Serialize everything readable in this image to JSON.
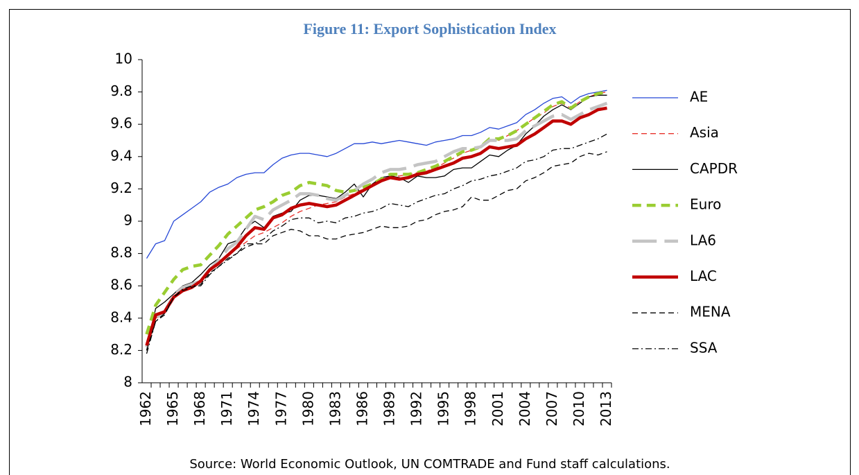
{
  "chart_data": {
    "type": "line",
    "title": "Figure 11: Export Sophistication Index",
    "source": "Source: World Economic Outlook, UN COMTRADE and Fund staff calculations.",
    "categories": [
      "1962",
      null,
      null,
      "1965",
      null,
      null,
      "1968",
      null,
      null,
      "1971",
      null,
      null,
      "1974",
      null,
      null,
      "1977",
      null,
      null,
      "1980",
      null,
      null,
      "1983",
      null,
      null,
      "1986",
      null,
      null,
      "1989",
      null,
      null,
      "1992",
      null,
      null,
      "1995",
      null,
      null,
      "1998",
      null,
      null,
      "2001",
      null,
      null,
      "2004",
      null,
      null,
      "2007",
      null,
      null,
      "2010",
      null,
      null,
      "2013"
    ],
    "ylim": [
      8,
      10
    ],
    "yticks": [
      8,
      8.2,
      8.4,
      8.6,
      8.8,
      9,
      9.2,
      9.4,
      9.6,
      9.8,
      10
    ],
    "grid": false,
    "legend": "right",
    "series": [
      {
        "name": "AE",
        "color": "#2547d6",
        "line_style": "solid",
        "weight": "thin",
        "values": [
          8.77,
          8.86,
          8.88,
          9.0,
          9.04,
          9.08,
          9.12,
          9.18,
          9.21,
          9.23,
          9.27,
          9.29,
          9.3,
          9.3,
          9.35,
          9.39,
          9.41,
          9.42,
          9.42,
          9.41,
          9.4,
          9.42,
          9.45,
          9.48,
          9.48,
          9.49,
          9.48,
          9.49,
          9.5,
          9.49,
          9.48,
          9.47,
          9.49,
          9.5,
          9.51,
          9.53,
          9.53,
          9.55,
          9.58,
          9.57,
          9.59,
          9.61,
          9.66,
          9.69,
          9.73,
          9.76,
          9.77,
          9.73,
          9.77,
          9.79,
          9.8,
          9.81
        ]
      },
      {
        "name": "Asia",
        "color": "#e8322c",
        "line_style": "dashed",
        "weight": "thin",
        "values": [
          8.24,
          8.4,
          8.43,
          8.53,
          8.57,
          8.59,
          8.63,
          8.69,
          8.73,
          8.79,
          8.83,
          8.87,
          8.91,
          8.93,
          8.96,
          8.99,
          9.03,
          9.06,
          9.08,
          9.1,
          9.11,
          9.12,
          9.15,
          9.17,
          9.2,
          9.23,
          9.25,
          9.28,
          9.28,
          9.29,
          9.3,
          9.31,
          9.33,
          9.36,
          9.39,
          9.42,
          9.44,
          9.46,
          9.5,
          9.5,
          9.53,
          9.56,
          9.6,
          9.64,
          9.67,
          9.71,
          9.73,
          9.7,
          9.74,
          9.77,
          9.79,
          9.8
        ]
      },
      {
        "name": "CAPDR",
        "color": "#000000",
        "line_style": "solid",
        "weight": "thin",
        "values": [
          8.2,
          8.46,
          8.5,
          8.55,
          8.6,
          8.62,
          8.67,
          8.73,
          8.77,
          8.86,
          8.88,
          8.96,
          9.0,
          8.96,
          9.03,
          9.05,
          9.06,
          9.13,
          9.16,
          9.16,
          9.15,
          9.14,
          9.18,
          9.23,
          9.15,
          9.23,
          9.27,
          9.28,
          9.27,
          9.24,
          9.28,
          9.27,
          9.27,
          9.28,
          9.32,
          9.33,
          9.33,
          9.37,
          9.41,
          9.4,
          9.44,
          9.47,
          9.54,
          9.59,
          9.65,
          9.69,
          9.72,
          9.69,
          9.73,
          9.77,
          9.78,
          9.78
        ]
      },
      {
        "name": "Euro",
        "color": "#9acd32",
        "line_style": "dashed",
        "weight": "thick",
        "values": [
          8.3,
          8.48,
          8.56,
          8.64,
          8.7,
          8.72,
          8.73,
          8.79,
          8.85,
          8.92,
          8.97,
          9.02,
          9.07,
          9.09,
          9.12,
          9.16,
          9.18,
          9.22,
          9.24,
          9.23,
          9.22,
          9.19,
          9.18,
          9.19,
          9.21,
          9.23,
          9.26,
          9.29,
          9.29,
          9.29,
          9.3,
          9.32,
          9.34,
          9.37,
          9.4,
          9.43,
          9.44,
          9.46,
          9.51,
          9.51,
          9.53,
          9.56,
          9.6,
          9.64,
          9.68,
          9.72,
          9.74,
          9.7,
          9.74,
          9.77,
          9.79,
          9.8
        ]
      },
      {
        "name": "LA6",
        "color": "#c4c4c4",
        "line_style": "long-dash",
        "weight": "thick",
        "values": [
          8.22,
          8.4,
          8.44,
          8.54,
          8.59,
          8.61,
          8.63,
          8.7,
          8.76,
          8.83,
          8.87,
          8.95,
          9.03,
          9.01,
          9.07,
          9.1,
          9.13,
          9.17,
          9.17,
          9.16,
          9.14,
          9.13,
          9.16,
          9.19,
          9.23,
          9.26,
          9.3,
          9.32,
          9.32,
          9.33,
          9.35,
          9.36,
          9.37,
          9.4,
          9.43,
          9.45,
          9.45,
          9.46,
          9.5,
          9.5,
          9.5,
          9.51,
          9.56,
          9.59,
          9.62,
          9.65,
          9.66,
          9.63,
          9.66,
          9.69,
          9.71,
          9.73
        ]
      },
      {
        "name": "LAC",
        "color": "#c00000",
        "line_style": "solid",
        "weight": "thick",
        "values": [
          8.23,
          8.42,
          8.44,
          8.53,
          8.57,
          8.59,
          8.63,
          8.7,
          8.74,
          8.79,
          8.84,
          8.91,
          8.96,
          8.95,
          9.02,
          9.04,
          9.08,
          9.1,
          9.11,
          9.1,
          9.09,
          9.1,
          9.13,
          9.16,
          9.19,
          9.22,
          9.25,
          9.27,
          9.26,
          9.27,
          9.29,
          9.3,
          9.32,
          9.34,
          9.36,
          9.39,
          9.4,
          9.42,
          9.46,
          9.45,
          9.46,
          9.47,
          9.51,
          9.54,
          9.58,
          9.62,
          9.62,
          9.6,
          9.64,
          9.66,
          9.69,
          9.7
        ]
      },
      {
        "name": "MENA",
        "color": "#000000",
        "line_style": "dashed",
        "weight": "thin",
        "values": [
          8.2,
          8.38,
          8.42,
          8.53,
          8.57,
          8.59,
          8.61,
          8.68,
          8.72,
          8.77,
          8.8,
          8.84,
          8.86,
          8.86,
          8.91,
          8.93,
          8.95,
          8.94,
          8.91,
          8.91,
          8.89,
          8.89,
          8.91,
          8.92,
          8.93,
          8.95,
          8.97,
          8.96,
          8.96,
          8.97,
          9.0,
          9.01,
          9.04,
          9.06,
          9.07,
          9.09,
          9.15,
          9.13,
          9.13,
          9.16,
          9.19,
          9.2,
          9.25,
          9.27,
          9.3,
          9.34,
          9.35,
          9.36,
          9.4,
          9.42,
          9.41,
          9.43
        ]
      },
      {
        "name": "SSA",
        "color": "#000000",
        "line_style": "dash-dot",
        "weight": "thin",
        "values": [
          8.18,
          8.38,
          8.43,
          8.53,
          8.58,
          8.6,
          8.6,
          8.67,
          8.72,
          8.76,
          8.8,
          8.86,
          8.86,
          8.89,
          8.94,
          8.97,
          9.01,
          9.02,
          9.02,
          8.99,
          9.0,
          8.99,
          9.02,
          9.03,
          9.05,
          9.06,
          9.08,
          9.11,
          9.1,
          9.09,
          9.12,
          9.14,
          9.16,
          9.17,
          9.2,
          9.22,
          9.25,
          9.26,
          9.28,
          9.29,
          9.31,
          9.33,
          9.37,
          9.38,
          9.4,
          9.44,
          9.45,
          9.45,
          9.47,
          9.49,
          9.51,
          9.54
        ]
      }
    ]
  }
}
